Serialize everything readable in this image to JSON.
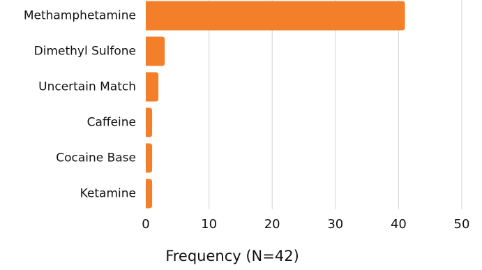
{
  "chart_data": {
    "type": "bar",
    "orientation": "horizontal",
    "categories": [
      "Methamphetamine",
      "Dimethyl Sulfone",
      "Uncertain Match",
      "Caffeine",
      "Cocaine Base",
      "Ketamine"
    ],
    "values": [
      41,
      3,
      2,
      1,
      1,
      1
    ],
    "title": "",
    "xlabel": "Frequency (N=42)",
    "ylabel": "",
    "xlim": [
      0,
      50
    ],
    "xticks": [
      "0",
      "10",
      "20",
      "30",
      "40",
      "50"
    ],
    "grid": "vertical",
    "legend": "none",
    "colors": {
      "bar": "#F47F2B",
      "grid": "#D3D3D3",
      "text": "#111111"
    }
  }
}
